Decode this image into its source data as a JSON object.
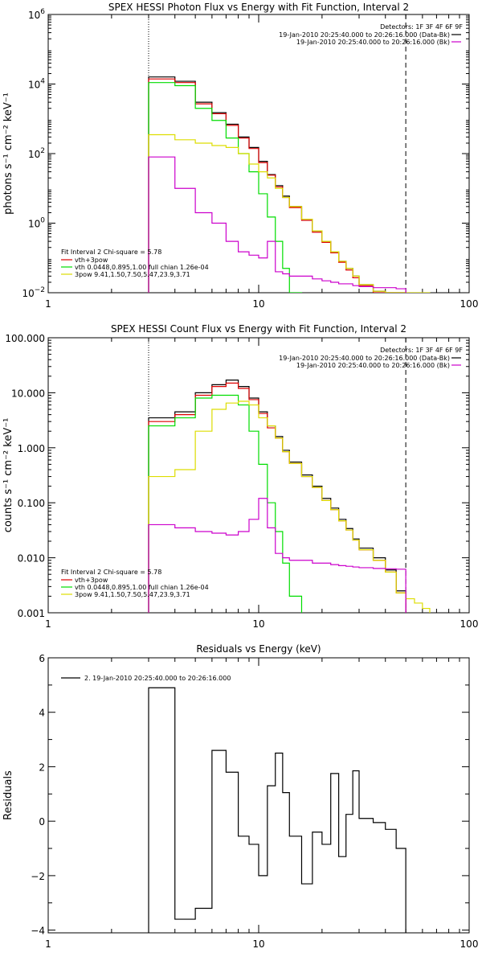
{
  "chart_data": [
    {
      "type": "line",
      "title": "SPEX HESSI Photon Flux vs Energy with Fit Function, Interval 2",
      "ylabel": "photons s⁻¹ cm⁻² keV⁻¹",
      "xscale": "log",
      "yscale": "log",
      "xlim": [
        1,
        100
      ],
      "ylim": [
        0.01,
        1000000
      ],
      "xticks": [
        "1",
        "10",
        "100"
      ],
      "yticks": [
        {
          "base": "10",
          "exp": "−2",
          "value": 0.01
        },
        {
          "base": "10",
          "exp": "0",
          "value": 1
        },
        {
          "base": "10",
          "exp": "2",
          "value": 100
        },
        {
          "base": "10",
          "exp": "4",
          "value": 10000
        },
        {
          "base": "10",
          "exp": "6",
          "value": 1000000
        }
      ],
      "detectors": "Detectors: 1F 3F 4F 6F 9F",
      "legend_right": [
        {
          "text": "19-Jan-2010 20:25:40.000 to 20:26:16.000 (Data-Bk)",
          "color": "#000000"
        },
        {
          "text": "19-Jan-2010 20:25:40.000 to 20:26:16.000 (Bk)",
          "color": "#cc00cc"
        }
      ],
      "legend_left_header": "Fit Interval 2    Chi-square = 5.78",
      "legend_left": [
        {
          "text": "vth+3pow",
          "color": "#dd0000"
        },
        {
          "text": "vth 0.0448,0.895,1.00  full chian 1.26e-04",
          "color": "#00dd00"
        },
        {
          "text": "3pow 9.41,1.50,7.50,5.47,23.9,3.71",
          "color": "#dddd00"
        }
      ],
      "vlines": [
        {
          "x": 3,
          "style": "dotted"
        },
        {
          "x": 50,
          "style": "dashed"
        }
      ],
      "series": [
        {
          "color": "#000000",
          "edges": [
            3,
            4,
            5,
            6,
            7,
            8,
            9,
            10,
            11,
            12,
            13,
            14,
            16,
            18,
            20,
            22,
            24,
            26,
            28,
            30,
            35,
            40,
            45,
            50
          ],
          "values": [
            16000,
            12000,
            3000,
            1500,
            700,
            300,
            150,
            60,
            25,
            12,
            6,
            3,
            1.3,
            0.6,
            0.3,
            0.15,
            0.08,
            0.05,
            0.03,
            0.017,
            0.011,
            0.007,
            0.005
          ]
        },
        {
          "color": "#dd0000",
          "edges": [
            3,
            4,
            5,
            6,
            7,
            8,
            9,
            10,
            11,
            12,
            13,
            14,
            16,
            18,
            20,
            22,
            24,
            26,
            28,
            30,
            35,
            40,
            45,
            50
          ],
          "values": [
            14000,
            11000,
            2700,
            1400,
            650,
            280,
            140,
            55,
            24,
            11,
            5.5,
            2.8,
            1.2,
            0.55,
            0.28,
            0.14,
            0.075,
            0.045,
            0.027,
            0.016,
            0.01,
            0.0065,
            0.0045
          ]
        },
        {
          "color": "#00dd00",
          "edges": [
            3,
            4,
            5,
            6,
            7,
            8,
            9,
            10,
            11,
            12,
            13,
            14,
            16
          ],
          "values": [
            11000,
            9000,
            2000,
            900,
            280,
            100,
            30,
            7,
            1.5,
            0.3,
            0.05,
            0.01
          ]
        },
        {
          "color": "#dddd00",
          "edges": [
            3,
            4,
            5,
            6,
            7,
            8,
            9,
            10,
            11,
            12,
            13,
            14,
            16,
            18,
            20,
            22,
            24,
            26,
            28,
            30,
            35,
            40,
            45,
            50,
            55,
            60,
            65
          ],
          "values": [
            350,
            250,
            200,
            170,
            150,
            100,
            50,
            30,
            20,
            10,
            5.5,
            3,
            1.3,
            0.6,
            0.3,
            0.15,
            0.08,
            0.05,
            0.03,
            0.017,
            0.011,
            0.007,
            0.005,
            0.006,
            0.009,
            0.01
          ]
        },
        {
          "color": "#cc00cc",
          "edges": [
            3,
            4,
            5,
            6,
            7,
            8,
            9,
            10,
            11,
            12,
            13,
            14,
            16,
            18,
            20,
            22,
            24,
            26,
            28,
            30,
            35,
            40,
            45,
            50
          ],
          "values": [
            80,
            10,
            2,
            1,
            0.3,
            0.15,
            0.12,
            0.1,
            0.3,
            0.04,
            0.035,
            0.03,
            0.03,
            0.025,
            0.022,
            0.02,
            0.018,
            0.018,
            0.016,
            0.015,
            0.014,
            0.014,
            0.013
          ]
        }
      ]
    },
    {
      "type": "line",
      "title": "SPEX HESSI Count Flux vs Energy with Fit Function, Interval 2",
      "ylabel": "counts s⁻¹ cm⁻² keV⁻¹",
      "xscale": "log",
      "yscale": "log",
      "xlim": [
        1,
        100
      ],
      "ylim": [
        0.001,
        100
      ],
      "xticks": [
        "1",
        "10",
        "100"
      ],
      "yticks": [
        {
          "label": "0.001",
          "value": 0.001
        },
        {
          "label": "0.010",
          "value": 0.01
        },
        {
          "label": "0.100",
          "value": 0.1
        },
        {
          "label": "1.000",
          "value": 1
        },
        {
          "label": "10.000",
          "value": 10
        },
        {
          "label": "100.000",
          "value": 100
        }
      ],
      "detectors": "Detectors: 1F 3F 4F 6F 9F",
      "legend_right": [
        {
          "text": "19-Jan-2010 20:25:40.000 to 20:26:16.000 (Data-Bk)",
          "color": "#000000"
        },
        {
          "text": "19-Jan-2010 20:25:40.000 to 20:26:16.000 (Bk)",
          "color": "#cc00cc"
        }
      ],
      "legend_left_header": "Fit Interval 2    Chi-square = 5.78",
      "legend_left": [
        {
          "text": "vth+3pow",
          "color": "#dd0000"
        },
        {
          "text": "vth 0.0448,0.895,1.00  full chian 1.26e-04",
          "color": "#00dd00"
        },
        {
          "text": "3pow 9.41,1.50,7.50,5.47,23.9,3.71",
          "color": "#dddd00"
        }
      ],
      "vlines": [
        {
          "x": 3,
          "style": "dotted"
        },
        {
          "x": 50,
          "style": "dashed"
        }
      ],
      "series": [
        {
          "color": "#000000",
          "edges": [
            3,
            4,
            5,
            6,
            7,
            8,
            9,
            10,
            11,
            12,
            13,
            14,
            16,
            18,
            20,
            22,
            24,
            26,
            28,
            30,
            35,
            40,
            45,
            50
          ],
          "values": [
            3.5,
            4.5,
            10,
            14,
            17,
            13,
            8,
            4.5,
            2.5,
            1.6,
            0.9,
            0.55,
            0.32,
            0.2,
            0.12,
            0.08,
            0.05,
            0.034,
            0.022,
            0.015,
            0.01,
            0.006,
            0.0025
          ]
        },
        {
          "color": "#dd0000",
          "edges": [
            3,
            4,
            5,
            6,
            7,
            8,
            9,
            10,
            11,
            12,
            13,
            14,
            16,
            18,
            20,
            22,
            24,
            26,
            28,
            30,
            35,
            40,
            45,
            50
          ],
          "values": [
            3.0,
            4.0,
            9,
            13,
            15,
            12,
            7.5,
            4.2,
            2.3,
            1.5,
            0.85,
            0.52,
            0.3,
            0.19,
            0.11,
            0.075,
            0.047,
            0.032,
            0.021,
            0.014,
            0.009,
            0.0055,
            0.0023
          ]
        },
        {
          "color": "#00dd00",
          "edges": [
            3,
            4,
            5,
            6,
            7,
            8,
            9,
            10,
            11,
            12,
            13,
            14,
            16
          ],
          "values": [
            2.5,
            3.5,
            8,
            9,
            9,
            6,
            2,
            0.5,
            0.1,
            0.03,
            0.008,
            0.002
          ]
        },
        {
          "color": "#dddd00",
          "edges": [
            3,
            4,
            5,
            6,
            7,
            8,
            9,
            10,
            11,
            12,
            13,
            14,
            16,
            18,
            20,
            22,
            24,
            26,
            28,
            30,
            35,
            40,
            45,
            50,
            55,
            60,
            65
          ],
          "values": [
            0.3,
            0.4,
            2,
            5,
            6.5,
            7,
            6,
            3.5,
            2.5,
            1.5,
            0.85,
            0.52,
            0.3,
            0.19,
            0.11,
            0.075,
            0.047,
            0.032,
            0.021,
            0.014,
            0.009,
            0.0055,
            0.0023,
            0.0018,
            0.0015,
            0.0012
          ]
        },
        {
          "color": "#cc00cc",
          "edges": [
            3,
            4,
            5,
            6,
            7,
            8,
            9,
            10,
            11,
            12,
            13,
            14,
            16,
            18,
            20,
            22,
            24,
            26,
            28,
            30,
            35,
            40,
            45,
            50
          ],
          "values": [
            0.04,
            0.035,
            0.03,
            0.028,
            0.026,
            0.03,
            0.05,
            0.12,
            0.035,
            0.012,
            0.01,
            0.009,
            0.009,
            0.008,
            0.008,
            0.0075,
            0.0072,
            0.007,
            0.0068,
            0.0066,
            0.0064,
            0.0063,
            0.0062
          ]
        }
      ]
    },
    {
      "type": "line",
      "title": "Residuals vs Energy (keV)",
      "ylabel": "Residuals",
      "xscale": "log",
      "yscale": "linear",
      "xlim": [
        1,
        100
      ],
      "ylim": [
        -4.1,
        6
      ],
      "xticks": [
        "1",
        "10",
        "100"
      ],
      "yticks": [
        {
          "label": "−4",
          "value": -4
        },
        {
          "label": "−2",
          "value": -2
        },
        {
          "label": "0",
          "value": 0
        },
        {
          "label": "2",
          "value": 2
        },
        {
          "label": "4",
          "value": 4
        },
        {
          "label": "6",
          "value": 6
        }
      ],
      "legend_left": [
        {
          "text": "2. 19-Jan-2010 20:25:40.000 to 20:26:16.000",
          "color": "#000000"
        }
      ],
      "series": [
        {
          "color": "#000000",
          "edges": [
            3,
            4,
            5,
            6,
            7,
            8,
            9,
            10,
            11,
            12,
            13,
            14,
            16,
            18,
            20,
            22,
            24,
            26,
            28,
            30,
            35,
            40,
            45,
            50
          ],
          "values": [
            4.9,
            -3.6,
            -3.2,
            2.6,
            1.8,
            -0.55,
            -0.85,
            -2.0,
            1.3,
            2.5,
            1.05,
            -0.55,
            -2.3,
            -0.4,
            -0.85,
            1.75,
            -1.3,
            0.25,
            1.85,
            0.1,
            -0.05,
            -0.3,
            -1.0
          ]
        }
      ]
    }
  ]
}
